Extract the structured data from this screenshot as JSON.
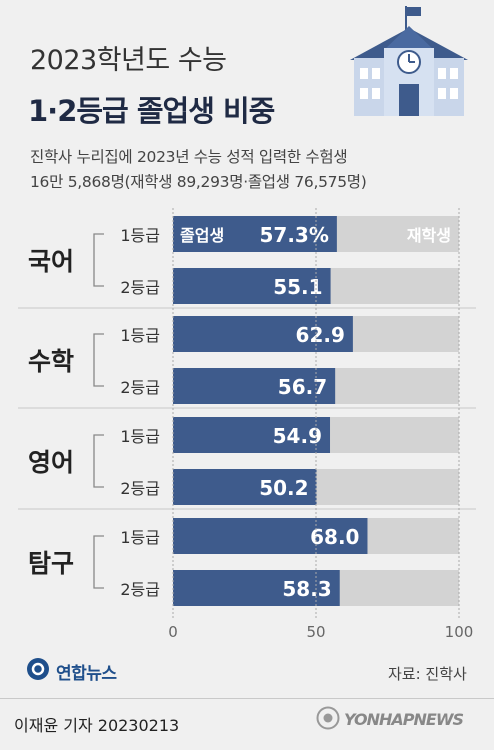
{
  "header": {
    "title_line1": "2023학년도 수능",
    "title_line2": "1·2등급 졸업생 비중",
    "subtitle_line1": "진학사 누리집에 2023년 수능 성적 입력한 수험생",
    "subtitle_line2": "16만 5,868명(재학생 89,293명·졸업생 76,575명)"
  },
  "chart_data": {
    "type": "bar",
    "orientation": "horizontal",
    "stacked": true,
    "groups": [
      {
        "subject": "국어",
        "rows": [
          {
            "grade": "1등급",
            "graduate": 57.3,
            "label": "57.3%"
          },
          {
            "grade": "2등급",
            "graduate": 55.1,
            "label": "55.1"
          }
        ]
      },
      {
        "subject": "수학",
        "rows": [
          {
            "grade": "1등급",
            "graduate": 62.9,
            "label": "62.9"
          },
          {
            "grade": "2등급",
            "graduate": 56.7,
            "label": "56.7"
          }
        ]
      },
      {
        "subject": "영어",
        "rows": [
          {
            "grade": "1등급",
            "graduate": 54.9,
            "label": "54.9"
          },
          {
            "grade": "2등급",
            "graduate": 50.2,
            "label": "50.2"
          }
        ]
      },
      {
        "subject": "탐구",
        "rows": [
          {
            "grade": "1등급",
            "graduate": 68.0,
            "label": "68.0"
          },
          {
            "grade": "2등급",
            "graduate": 58.3,
            "label": "58.3"
          }
        ]
      }
    ],
    "series": [
      {
        "name": "졸업생",
        "color": "#3e5b8c"
      },
      {
        "name": "재학생",
        "color": "#d3d3d3"
      }
    ],
    "xlim": [
      0,
      100
    ],
    "xticks": [
      "0",
      "50",
      "100"
    ],
    "grid": true
  },
  "footer": {
    "logo_text": "연합뉴스",
    "source": "자료: 진학사",
    "reporter": "이재윤 기자  20230213",
    "watermark": "YONHAPNEWS"
  },
  "colors": {
    "background": "#f0f0f0",
    "graduate": "#3e5b8c",
    "current": "#d3d3d3",
    "title_dark": "#1f2a44",
    "brand": "#1f4f8b"
  }
}
